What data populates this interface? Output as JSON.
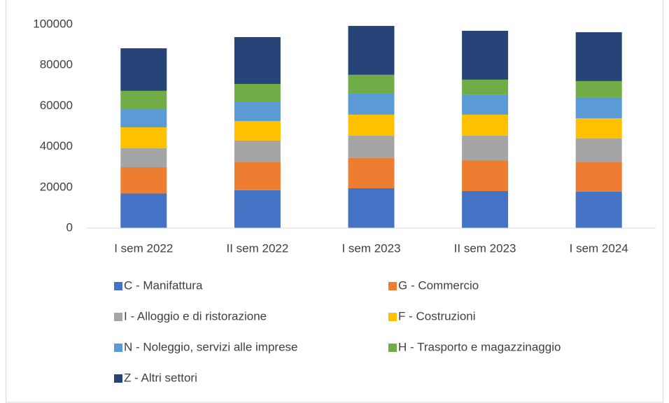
{
  "chart_data": {
    "type": "stacked_bar",
    "categories": [
      "I sem 2022",
      "II sem 2022",
      "I sem 2023",
      "II sem 2023",
      "I sem 2024"
    ],
    "series": [
      {
        "name": "C - Manifattura",
        "color": "#4472c4",
        "values": [
          17000,
          18600,
          19600,
          18200,
          17900
        ]
      },
      {
        "name": "G - Commercio",
        "color": "#ed7d31",
        "values": [
          12900,
          14000,
          14800,
          15100,
          14400
        ]
      },
      {
        "name": "I - Alloggio e di ristorazione",
        "color": "#a5a5a5",
        "values": [
          9300,
          10400,
          11000,
          12100,
          11700
        ]
      },
      {
        "name": "F - Costruzioni",
        "color": "#ffc000",
        "values": [
          10300,
          9600,
          10300,
          10300,
          9900
        ]
      },
      {
        "name": "N - Noleggio,  servizi alle imprese",
        "color": "#5b9bd5",
        "values": [
          8900,
          9600,
          10600,
          9900,
          10400
        ]
      },
      {
        "name": "H - Trasporto e magazzinaggio",
        "color": "#70ad47",
        "values": [
          9000,
          8600,
          9000,
          7300,
          7900
        ]
      },
      {
        "name": "Z - Altri settori",
        "color": "#264478",
        "values": [
          20900,
          23000,
          24000,
          24000,
          24000
        ]
      }
    ],
    "ylim": [
      0,
      100000
    ],
    "yticks": [
      0,
      20000,
      40000,
      60000,
      80000,
      100000
    ],
    "grid": false,
    "legend": "bottom"
  }
}
